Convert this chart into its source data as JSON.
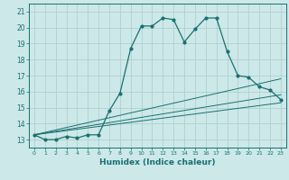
{
  "xlabel": "Humidex (Indice chaleur)",
  "ylabel": "",
  "bg_color": "#cce8e8",
  "grid_color": "#aacccc",
  "line_color": "#1a7070",
  "xlim": [
    -0.5,
    23.5
  ],
  "ylim": [
    12.5,
    21.5
  ],
  "xticks": [
    0,
    1,
    2,
    3,
    4,
    5,
    6,
    7,
    8,
    9,
    10,
    11,
    12,
    13,
    14,
    15,
    16,
    17,
    18,
    19,
    20,
    21,
    22,
    23
  ],
  "yticks": [
    13,
    14,
    15,
    16,
    17,
    18,
    19,
    20,
    21
  ],
  "main_line_x": [
    0,
    1,
    2,
    3,
    4,
    5,
    6,
    7,
    8,
    9,
    10,
    11,
    12,
    13,
    14,
    15,
    16,
    17,
    18,
    19,
    20,
    21,
    22,
    23
  ],
  "main_line_y": [
    13.3,
    13.0,
    13.0,
    13.2,
    13.1,
    13.3,
    13.3,
    14.8,
    15.9,
    18.7,
    20.1,
    20.1,
    20.6,
    20.5,
    19.1,
    19.9,
    20.6,
    20.6,
    18.5,
    17.0,
    16.9,
    16.3,
    16.1,
    15.5
  ],
  "ref_lines": [
    {
      "x": [
        0,
        23
      ],
      "y": [
        13.3,
        16.8
      ]
    },
    {
      "x": [
        0,
        23
      ],
      "y": [
        13.3,
        15.8
      ]
    },
    {
      "x": [
        0,
        23
      ],
      "y": [
        13.3,
        15.3
      ]
    }
  ],
  "xlabel_fontsize": 6.5,
  "tick_fontsize": 5.5
}
